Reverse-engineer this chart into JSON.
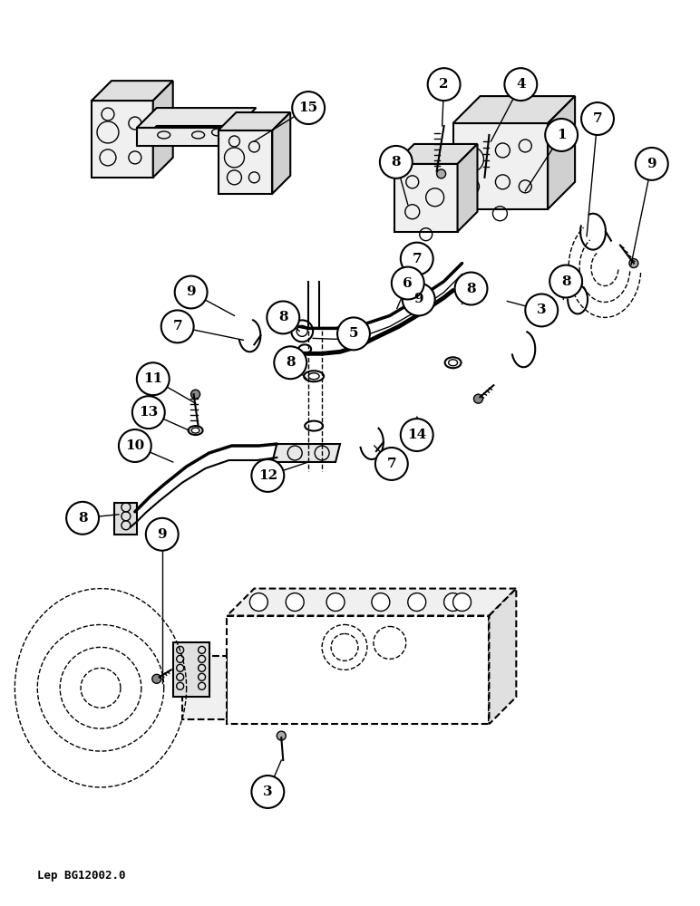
{
  "background_color": "#ffffff",
  "figure_width": 7.72,
  "figure_height": 10.0,
  "dpi": 100,
  "footer_text": "Lep BG12002.0",
  "line_color": "#000000",
  "callout_font_size": 11,
  "footer_font_size": 9
}
